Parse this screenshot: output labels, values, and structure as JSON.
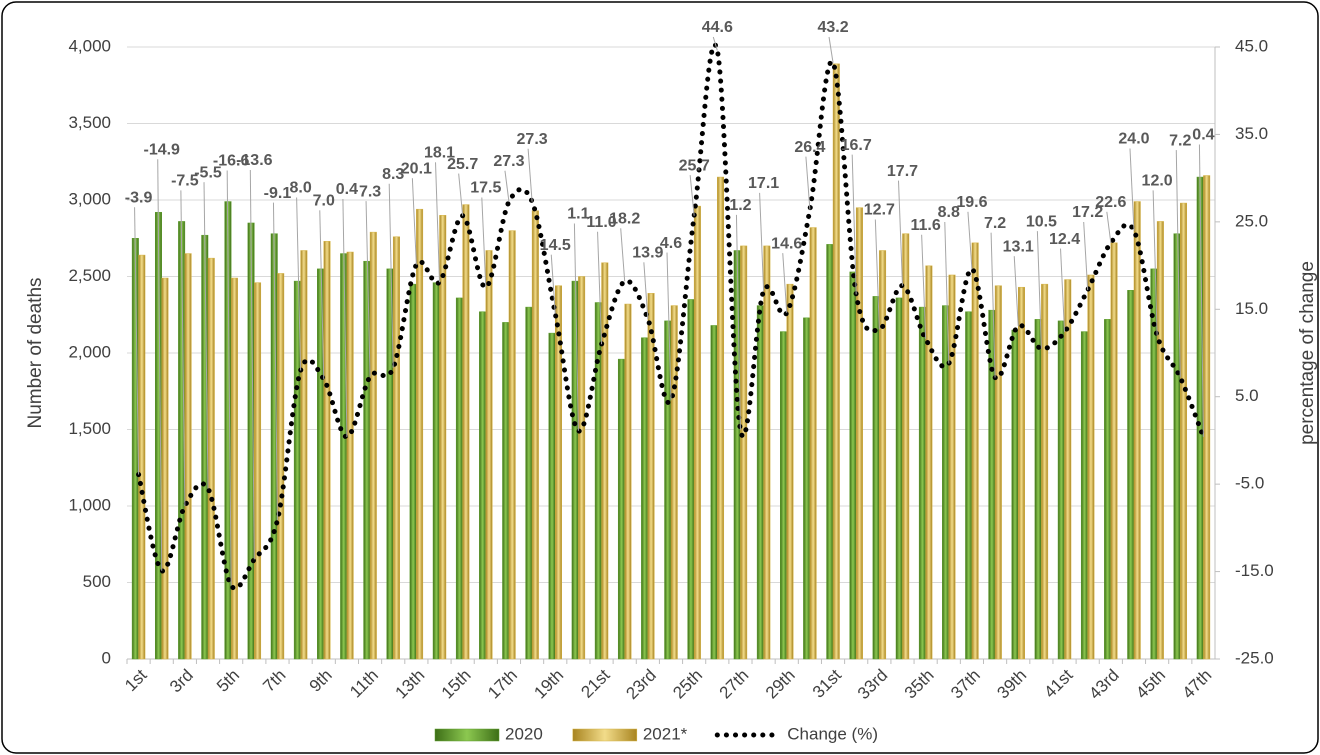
{
  "chart_data": {
    "type": "bar-line",
    "y_label": "Number of deaths",
    "y2_label": "percentage of change",
    "categories": [
      "1st",
      null,
      "3rd",
      null,
      "5th",
      null,
      "7th",
      null,
      "9th",
      null,
      "11th",
      null,
      "13th",
      null,
      "15th",
      null,
      "17th",
      null,
      "19th",
      null,
      "21st",
      null,
      "23rd",
      null,
      "25th",
      null,
      "27th",
      null,
      "29th",
      null,
      "31st",
      null,
      "33rd",
      null,
      "35th",
      null,
      "37th",
      null,
      "39th",
      null,
      "41st",
      null,
      "43rd",
      null,
      "45th",
      null,
      "47th"
    ],
    "series": [
      {
        "name": "2020",
        "color": "#5e9e2c",
        "values": [
          2750,
          2920,
          2860,
          2770,
          2990,
          2850,
          2780,
          2470,
          2550,
          2650,
          2600,
          2550,
          2450,
          2460,
          2360,
          2270,
          2200,
          2300,
          2130,
          2470,
          2330,
          1960,
          2100,
          2210,
          2350,
          2180,
          2670,
          2310,
          2140,
          2230,
          2710,
          2530,
          2370,
          2360,
          2300,
          2310,
          2270,
          2280,
          2150,
          2220,
          2210,
          2140,
          2220,
          2410,
          2550,
          2780,
          3150
        ]
      },
      {
        "name": "2021*",
        "color": "#d6b445",
        "values": [
          2640,
          2490,
          2650,
          2620,
          2490,
          2460,
          2520,
          2670,
          2730,
          2660,
          2790,
          2760,
          2940,
          2900,
          2970,
          2670,
          2800,
          2930,
          2440,
          2500,
          2590,
          2320,
          2390,
          2310,
          2960,
          3150,
          2700,
          2700,
          2450,
          2820,
          3890,
          2950,
          2670,
          2780,
          2570,
          2510,
          2720,
          2440,
          2430,
          2450,
          2480,
          2510,
          2720,
          2990,
          2860,
          2980,
          3160
        ]
      },
      {
        "name": "Change (%)",
        "color": "#000000",
        "axis": "y2",
        "values": [
          -3.9,
          -14.9,
          -7.5,
          -5.5,
          -16.6,
          -13.6,
          -9.1,
          8,
          7,
          0.4,
          7.3,
          8.3,
          20.1,
          18.1,
          25.7,
          17.5,
          27.3,
          27.3,
          14.5,
          1.1,
          11,
          18.2,
          13.9,
          4.6,
          25.7,
          44.6,
          1.2,
          17.1,
          14.6,
          26.4,
          43.2,
          16.7,
          12.7,
          17.7,
          11.6,
          8.8,
          19.6,
          7.2,
          13.1,
          10.5,
          12.4,
          17.2,
          22.6,
          24,
          12,
          7.2,
          0.4
        ],
        "value_labels": [
          "-3.9",
          "-14.9",
          "-7.5",
          "-5.5",
          "-16.6",
          "-13.6",
          "-9.1",
          "8.0",
          "7.0",
          "0.4",
          "7.3",
          "8.3",
          "20.1",
          "18.1",
          "25.7",
          "17.5",
          "27.3",
          "27.3",
          "14.5",
          "1.1",
          "11.0",
          "18.2",
          "13.9",
          "4.6",
          "25.7",
          "44.6",
          "1.2",
          "17.1",
          "14.6",
          "26.4",
          "43.2",
          "16.7",
          "12.7",
          "17.7",
          "11.6",
          "8.8",
          "19.6",
          "7.2",
          "13.1",
          "10.5",
          "12.4",
          "17.2",
          "22.6",
          "24.0",
          "12.0",
          "7.2",
          "0.4"
        ]
      }
    ],
    "ylim": [
      0,
      4000
    ],
    "yticks": [
      0,
      500,
      {
        "value": 1000,
        "label": "1,000"
      },
      {
        "value": 1500,
        "label": "1,500"
      },
      {
        "value": 2000,
        "label": "2,000"
      },
      {
        "value": 2500,
        "label": "2,500"
      },
      {
        "value": 3000,
        "label": "3,000"
      },
      {
        "value": 3500,
        "label": "3,500"
      },
      {
        "value": 4000,
        "label": "4,000"
      }
    ],
    "y2lim": [
      -25,
      45
    ],
    "y2ticks": [
      {
        "value": -25,
        "label": "-25.0"
      },
      {
        "value": -15,
        "label": "-15.0"
      },
      {
        "value": -5,
        "label": "-5.0"
      },
      {
        "value": 5,
        "label": "5.0"
      },
      {
        "value": 15,
        "label": "15.0"
      },
      {
        "value": 25,
        "label": "25.0"
      },
      {
        "value": 35,
        "label": "35.0"
      },
      {
        "value": 45,
        "label": "45.0"
      }
    ],
    "grid": true,
    "legend": "bottom"
  }
}
